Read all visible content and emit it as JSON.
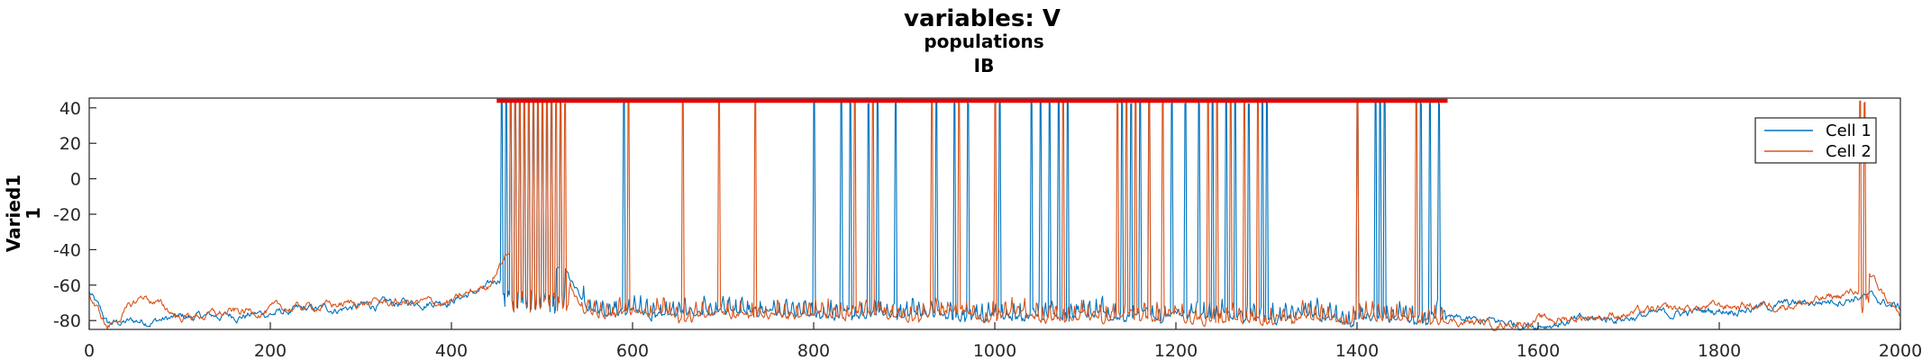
{
  "chart_data": {
    "type": "line",
    "title": "variables: V",
    "subtitle_1": "populations",
    "subtitle_2": "IB",
    "ylabel_1": "Varied1",
    "ylabel_2": "1",
    "xlim": [
      0,
      2000
    ],
    "ylim": [
      -86,
      46
    ],
    "xticks": [
      0,
      200,
      400,
      600,
      800,
      1000,
      1200,
      1400,
      1600,
      1800,
      2000
    ],
    "yticks": [
      -80,
      -60,
      -40,
      -20,
      0,
      20,
      40
    ],
    "grid": false,
    "legend_position": "top-right",
    "stimulus_bar": {
      "x_start": 450,
      "x_end": 1500,
      "y": 44,
      "color": "#e60000"
    },
    "series": [
      {
        "name": "Cell 1",
        "color": "#0072bd",
        "baseline": [
          [
            0,
            -64
          ],
          [
            20,
            -82
          ],
          [
            60,
            -80
          ],
          [
            120,
            -78
          ],
          [
            200,
            -76
          ],
          [
            300,
            -72
          ],
          [
            400,
            -68
          ],
          [
            440,
            -62
          ],
          [
            455,
            -55
          ],
          [
            520,
            -50
          ],
          [
            550,
            -75
          ],
          [
            1500,
            -80
          ],
          [
            1600,
            -82
          ],
          [
            1700,
            -78
          ],
          [
            1800,
            -74
          ],
          [
            1900,
            -70
          ],
          [
            1960,
            -66
          ],
          [
            2000,
            -73
          ]
        ],
        "spike_times": [
          455,
          460,
          465,
          470,
          475,
          480,
          485,
          490,
          495,
          500,
          505,
          510,
          520,
          590,
          800,
          830,
          840,
          860,
          870,
          890,
          935,
          955,
          970,
          1005,
          1040,
          1050,
          1060,
          1070,
          1080,
          1140,
          1150,
          1160,
          1170,
          1195,
          1210,
          1225,
          1240,
          1255,
          1265,
          1280,
          1295,
          1300,
          1400,
          1420,
          1425,
          1430,
          1470,
          1480,
          1490
        ]
      },
      {
        "name": "Cell 2",
        "color": "#d95319",
        "baseline": [
          [
            0,
            -66
          ],
          [
            20,
            -84
          ],
          [
            60,
            -66
          ],
          [
            100,
            -78
          ],
          [
            200,
            -74
          ],
          [
            300,
            -70
          ],
          [
            400,
            -70
          ],
          [
            440,
            -60
          ],
          [
            460,
            -42
          ],
          [
            520,
            -48
          ],
          [
            550,
            -76
          ],
          [
            1500,
            -80
          ],
          [
            1550,
            -82
          ],
          [
            1700,
            -76
          ],
          [
            1800,
            -72
          ],
          [
            1900,
            -70
          ],
          [
            1950,
            -64
          ],
          [
            1965,
            -54
          ],
          [
            2000,
            -78
          ]
        ],
        "spike_times": [
          465,
          470,
          475,
          480,
          485,
          490,
          495,
          500,
          505,
          510,
          515,
          520,
          525,
          595,
          655,
          695,
          735,
          845,
          865,
          930,
          960,
          1000,
          1075,
          1135,
          1145,
          1155,
          1170,
          1185,
          1235,
          1245,
          1260,
          1275,
          1290,
          1400,
          1465,
          1955,
          1960
        ]
      }
    ]
  }
}
